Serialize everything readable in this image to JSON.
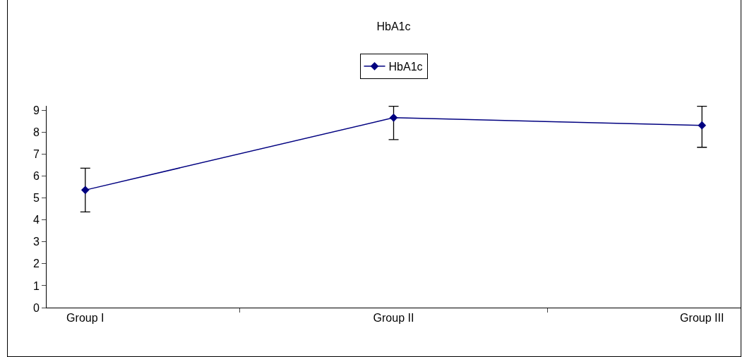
{
  "chart_data": {
    "type": "line",
    "title": "HbA1c",
    "categories": [
      "Group I",
      "Group II",
      "Group III"
    ],
    "series": [
      {
        "name": "HbA1c",
        "color": "#000080",
        "values": [
          5.36,
          8.66,
          8.31
        ],
        "errors": [
          1,
          [
            7.66,
            9.18
          ],
          [
            7.31,
            9.18
          ]
        ]
      }
    ],
    "ylim": [
      0,
      9.2
    ],
    "yticks": [
      0,
      1,
      2,
      3,
      4,
      5,
      6,
      7,
      8,
      9
    ],
    "grid": false,
    "legend": "top",
    "marker": "diamond",
    "line_style": "solid"
  }
}
